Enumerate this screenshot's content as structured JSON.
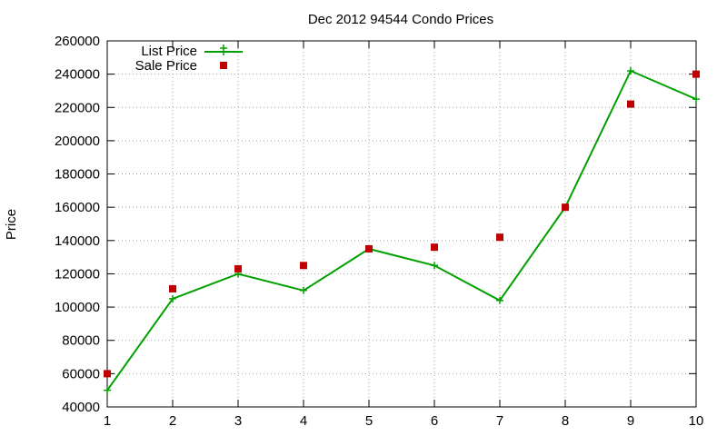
{
  "chart_data": {
    "type": "line",
    "title": "Dec 2012 94544 Condo Prices",
    "xlabel": "",
    "ylabel": "Price",
    "x": [
      1,
      2,
      3,
      4,
      5,
      6,
      7,
      8,
      9,
      10
    ],
    "xlim": [
      1,
      10
    ],
    "ylim": [
      40000,
      260000
    ],
    "xticks": [
      "1",
      "2",
      "3",
      "4",
      "5",
      "6",
      "7",
      "8",
      "9",
      "10"
    ],
    "yticks": [
      "40000",
      "60000",
      "80000",
      "100000",
      "120000",
      "140000",
      "160000",
      "180000",
      "200000",
      "220000",
      "240000",
      "260000"
    ],
    "grid": true,
    "legend_position": "top-left",
    "series": [
      {
        "name": "List Price",
        "style": "line with plus markers",
        "color": "#00a000",
        "values": [
          50000,
          105000,
          120000,
          110000,
          135000,
          125000,
          104000,
          160000,
          242000,
          225000
        ]
      },
      {
        "name": "Sale Price",
        "style": "square markers",
        "color": "#c00000",
        "values": [
          60000,
          111000,
          123000,
          125000,
          135000,
          136000,
          142000,
          160000,
          222000,
          240000
        ]
      }
    ]
  }
}
